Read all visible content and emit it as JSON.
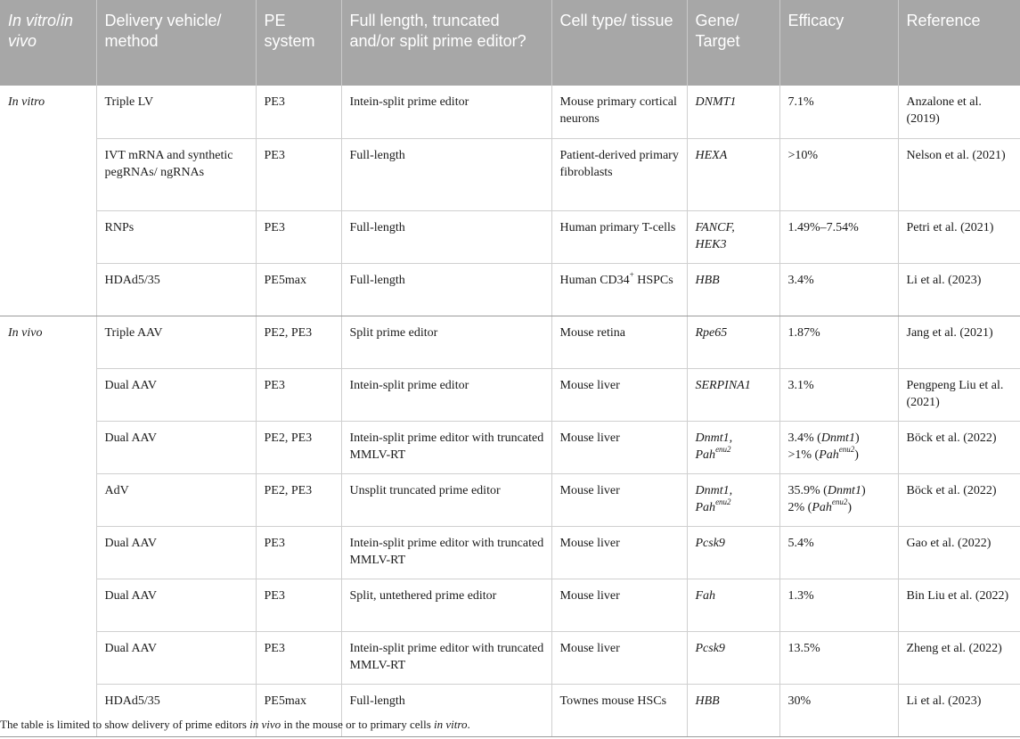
{
  "table": {
    "headers": {
      "col1_a": "In vitro",
      "col1_sep": "/",
      "col1_b": "in vivo",
      "col2": "Delivery vehicle/ method",
      "col3": "PE system",
      "col4": "Full length, truncated and/or split prime editor?",
      "col5": "Cell type/ tissue",
      "col6": "Gene/ Target",
      "col7": "Efficacy",
      "col8": "Reference"
    },
    "groups": {
      "in_vitro": "In vitro",
      "in_vivo": "In vivo"
    },
    "rows": [
      {
        "vehicle": "Triple LV",
        "pe": "PE3",
        "editor": "Intein-split prime editor",
        "cell": "Mouse primary cortical neurons",
        "gene": "DNMT1",
        "efficacy": "7.1%",
        "reference": "Anzalone et al. (2019)"
      },
      {
        "vehicle": "IVT mRNA and synthetic pegRNAs/ ngRNAs",
        "pe": "PE3",
        "editor": "Full-length",
        "cell": "Patient-derived primary fibroblasts",
        "gene": "HEXA",
        "efficacy": ">10%",
        "reference": "Nelson et al. (2021)"
      },
      {
        "vehicle": "RNPs",
        "pe": "PE3",
        "editor": "Full-length",
        "cell": "Human primary T-cells",
        "gene": "FANCF,",
        "gene2": "HEK3",
        "efficacy": "1.49%–7.54%",
        "reference": "Petri et al. (2021)"
      },
      {
        "vehicle": "HDAd5/35",
        "pe": "PE5max",
        "editor": "Full-length",
        "cell": "Human CD34",
        "cell_sup": "+",
        "cell2": "HSPCs",
        "gene": "HBB",
        "efficacy": "3.4%",
        "reference": "Li et al. (2023)"
      },
      {
        "vehicle": "Triple AAV",
        "pe": "PE2, PE3",
        "editor": "Split prime editor",
        "cell": "Mouse retina",
        "gene": "Rpe65",
        "efficacy": "1.87%",
        "reference": "Jang et al. (2021)"
      },
      {
        "vehicle": "Dual AAV",
        "pe": "PE3",
        "editor": "Intein-split prime editor",
        "cell": "Mouse liver",
        "gene": "SERPINA1",
        "efficacy": "3.1%",
        "reference": "Pengpeng Liu et al. (2021)"
      },
      {
        "vehicle": "Dual AAV",
        "pe": "PE2, PE3",
        "editor": "Intein-split prime editor with truncated MMLV-RT",
        "cell": "Mouse liver",
        "gene": "Dnmt1,",
        "gene2": "Pah",
        "gene2_sup": "enu2",
        "eff1_a": "3.4% (",
        "eff1_i": "Dnmt1",
        "eff1_b": ")",
        "eff2_a": ">1% (",
        "eff2_i": "Pah",
        "eff2_sup": "enu2",
        "eff2_b": ")",
        "reference": "Böck et al. (2022)"
      },
      {
        "vehicle": "AdV",
        "pe": "PE2, PE3",
        "editor": "Unsplit truncated prime editor",
        "cell": "Mouse liver",
        "gene": "Dnmt1,",
        "gene2": "Pah",
        "gene2_sup": "enu2",
        "eff1_a": "35.9% (",
        "eff1_i": "Dnmt1",
        "eff1_b": ")",
        "eff2_a": "2% (",
        "eff2_i": "Pah",
        "eff2_sup": "enu2",
        "eff2_b": ")",
        "reference": "Böck et al. (2022)"
      },
      {
        "vehicle": "Dual AAV",
        "pe": "PE3",
        "editor": "Intein-split prime editor with truncated MMLV-RT",
        "cell": "Mouse liver",
        "gene": "Pcsk9",
        "efficacy": "5.4%",
        "reference": "Gao et al. (2022)"
      },
      {
        "vehicle": "Dual AAV",
        "pe": "PE3",
        "editor": "Split, untethered prime editor",
        "cell": "Mouse liver",
        "gene": "Fah",
        "efficacy": "1.3%",
        "reference": "Bin Liu et al. (2022)"
      },
      {
        "vehicle": "Dual AAV",
        "pe": "PE3",
        "editor": "Intein-split prime editor with truncated MMLV-RT",
        "cell": "Mouse liver",
        "gene": "Pcsk9",
        "efficacy": "13.5%",
        "reference": "Zheng et al. (2022)"
      },
      {
        "vehicle": "HDAd5/35",
        "pe": "PE5max",
        "editor": "Full-length",
        "cell": "Townes mouse HSCs",
        "gene": "HBB",
        "efficacy": "30%",
        "reference": "Li et al. (2023)"
      }
    ]
  },
  "footnote": {
    "part1": "The table is limited to show delivery of prime editors ",
    "part2_italic": "in vivo",
    "part3": " in the mouse or to primary cells ",
    "part4_italic": "in vitro",
    "part5": "."
  }
}
